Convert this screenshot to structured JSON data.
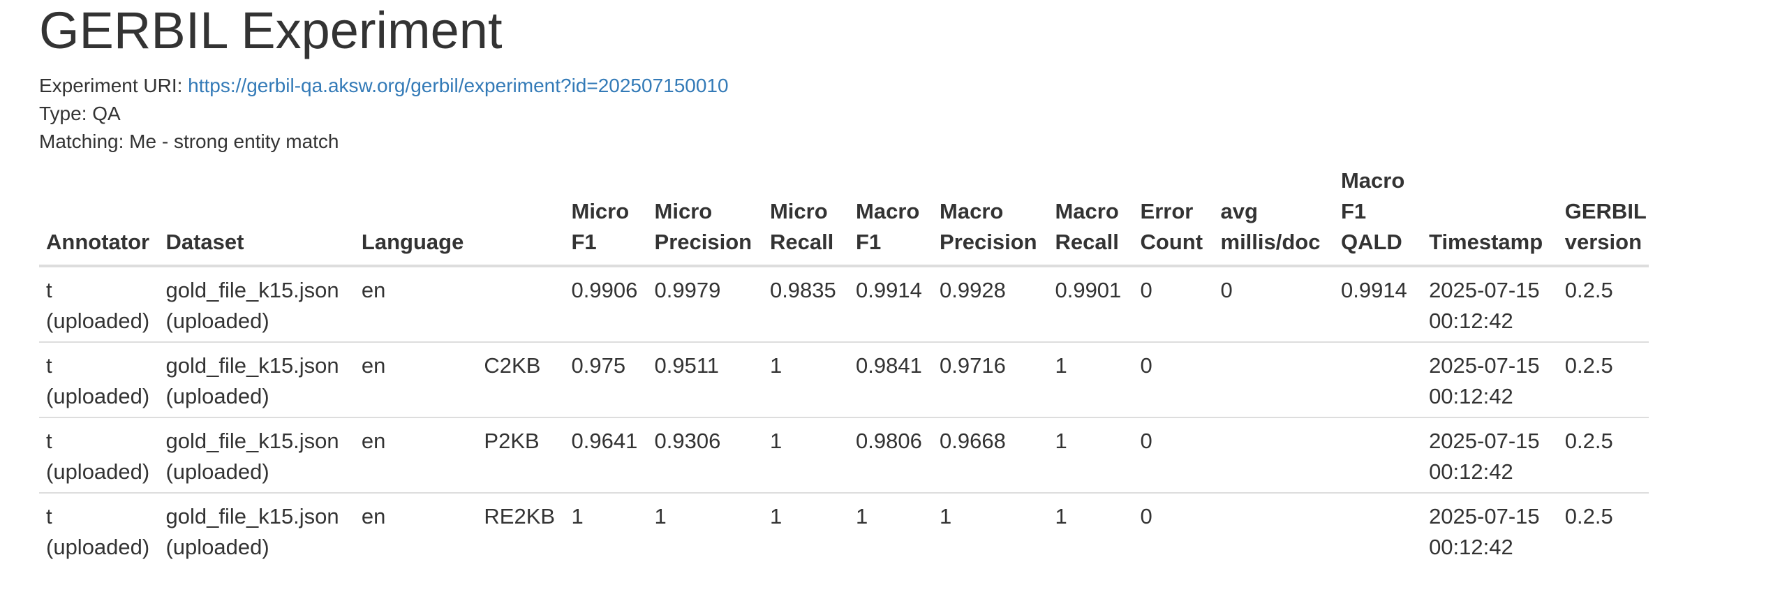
{
  "title": "GERBIL Experiment",
  "experiment_uri_label": "Experiment URI: ",
  "experiment_uri": "https://gerbil-qa.aksw.org/gerbil/experiment?id=202507150010",
  "type_text": "Type: QA",
  "matching_text": "Matching: Me - strong entity match",
  "table": {
    "headers": [
      [
        "Annotator"
      ],
      [
        "Dataset"
      ],
      [
        "Language"
      ],
      [
        ""
      ],
      [
        "Micro",
        "F1"
      ],
      [
        "Micro",
        "Precision"
      ],
      [
        "Micro",
        "Recall"
      ],
      [
        "Macro",
        "F1"
      ],
      [
        "Macro",
        "Precision"
      ],
      [
        "Macro",
        "Recall"
      ],
      [
        "Error",
        "Count"
      ],
      [
        "avg",
        "millis/doc"
      ],
      [
        "Macro",
        "F1",
        "QALD"
      ],
      [
        "Timestamp"
      ],
      [
        "GERBIL",
        "version"
      ]
    ],
    "rows": [
      [
        [
          "t",
          "(uploaded)"
        ],
        [
          "gold_file_k15.json",
          "(uploaded)"
        ],
        [
          "en"
        ],
        [
          ""
        ],
        [
          "0.9906"
        ],
        [
          "0.9979"
        ],
        [
          "0.9835"
        ],
        [
          "0.9914"
        ],
        [
          "0.9928"
        ],
        [
          "0.9901"
        ],
        [
          "0"
        ],
        [
          "0"
        ],
        [
          "0.9914"
        ],
        [
          "2025-07-15",
          "00:12:42"
        ],
        [
          "0.2.5"
        ]
      ],
      [
        [
          "t",
          "(uploaded)"
        ],
        [
          "gold_file_k15.json",
          "(uploaded)"
        ],
        [
          "en"
        ],
        [
          "C2KB"
        ],
        [
          "0.975"
        ],
        [
          "0.9511"
        ],
        [
          "1"
        ],
        [
          "0.9841"
        ],
        [
          "0.9716"
        ],
        [
          "1"
        ],
        [
          "0"
        ],
        [
          ""
        ],
        [
          ""
        ],
        [
          "2025-07-15",
          "00:12:42"
        ],
        [
          "0.2.5"
        ]
      ],
      [
        [
          "t",
          "(uploaded)"
        ],
        [
          "gold_file_k15.json",
          "(uploaded)"
        ],
        [
          "en"
        ],
        [
          "P2KB"
        ],
        [
          "0.9641"
        ],
        [
          "0.9306"
        ],
        [
          "1"
        ],
        [
          "0.9806"
        ],
        [
          "0.9668"
        ],
        [
          "1"
        ],
        [
          "0"
        ],
        [
          ""
        ],
        [
          ""
        ],
        [
          "2025-07-15",
          "00:12:42"
        ],
        [
          "0.2.5"
        ]
      ],
      [
        [
          "t",
          "(uploaded)"
        ],
        [
          "gold_file_k15.json",
          "(uploaded)"
        ],
        [
          "en"
        ],
        [
          "RE2KB"
        ],
        [
          "1"
        ],
        [
          "1"
        ],
        [
          "1"
        ],
        [
          "1"
        ],
        [
          "1"
        ],
        [
          "1"
        ],
        [
          "0"
        ],
        [
          ""
        ],
        [
          ""
        ],
        [
          "2025-07-15",
          "00:12:42"
        ],
        [
          "0.2.5"
        ]
      ]
    ]
  }
}
